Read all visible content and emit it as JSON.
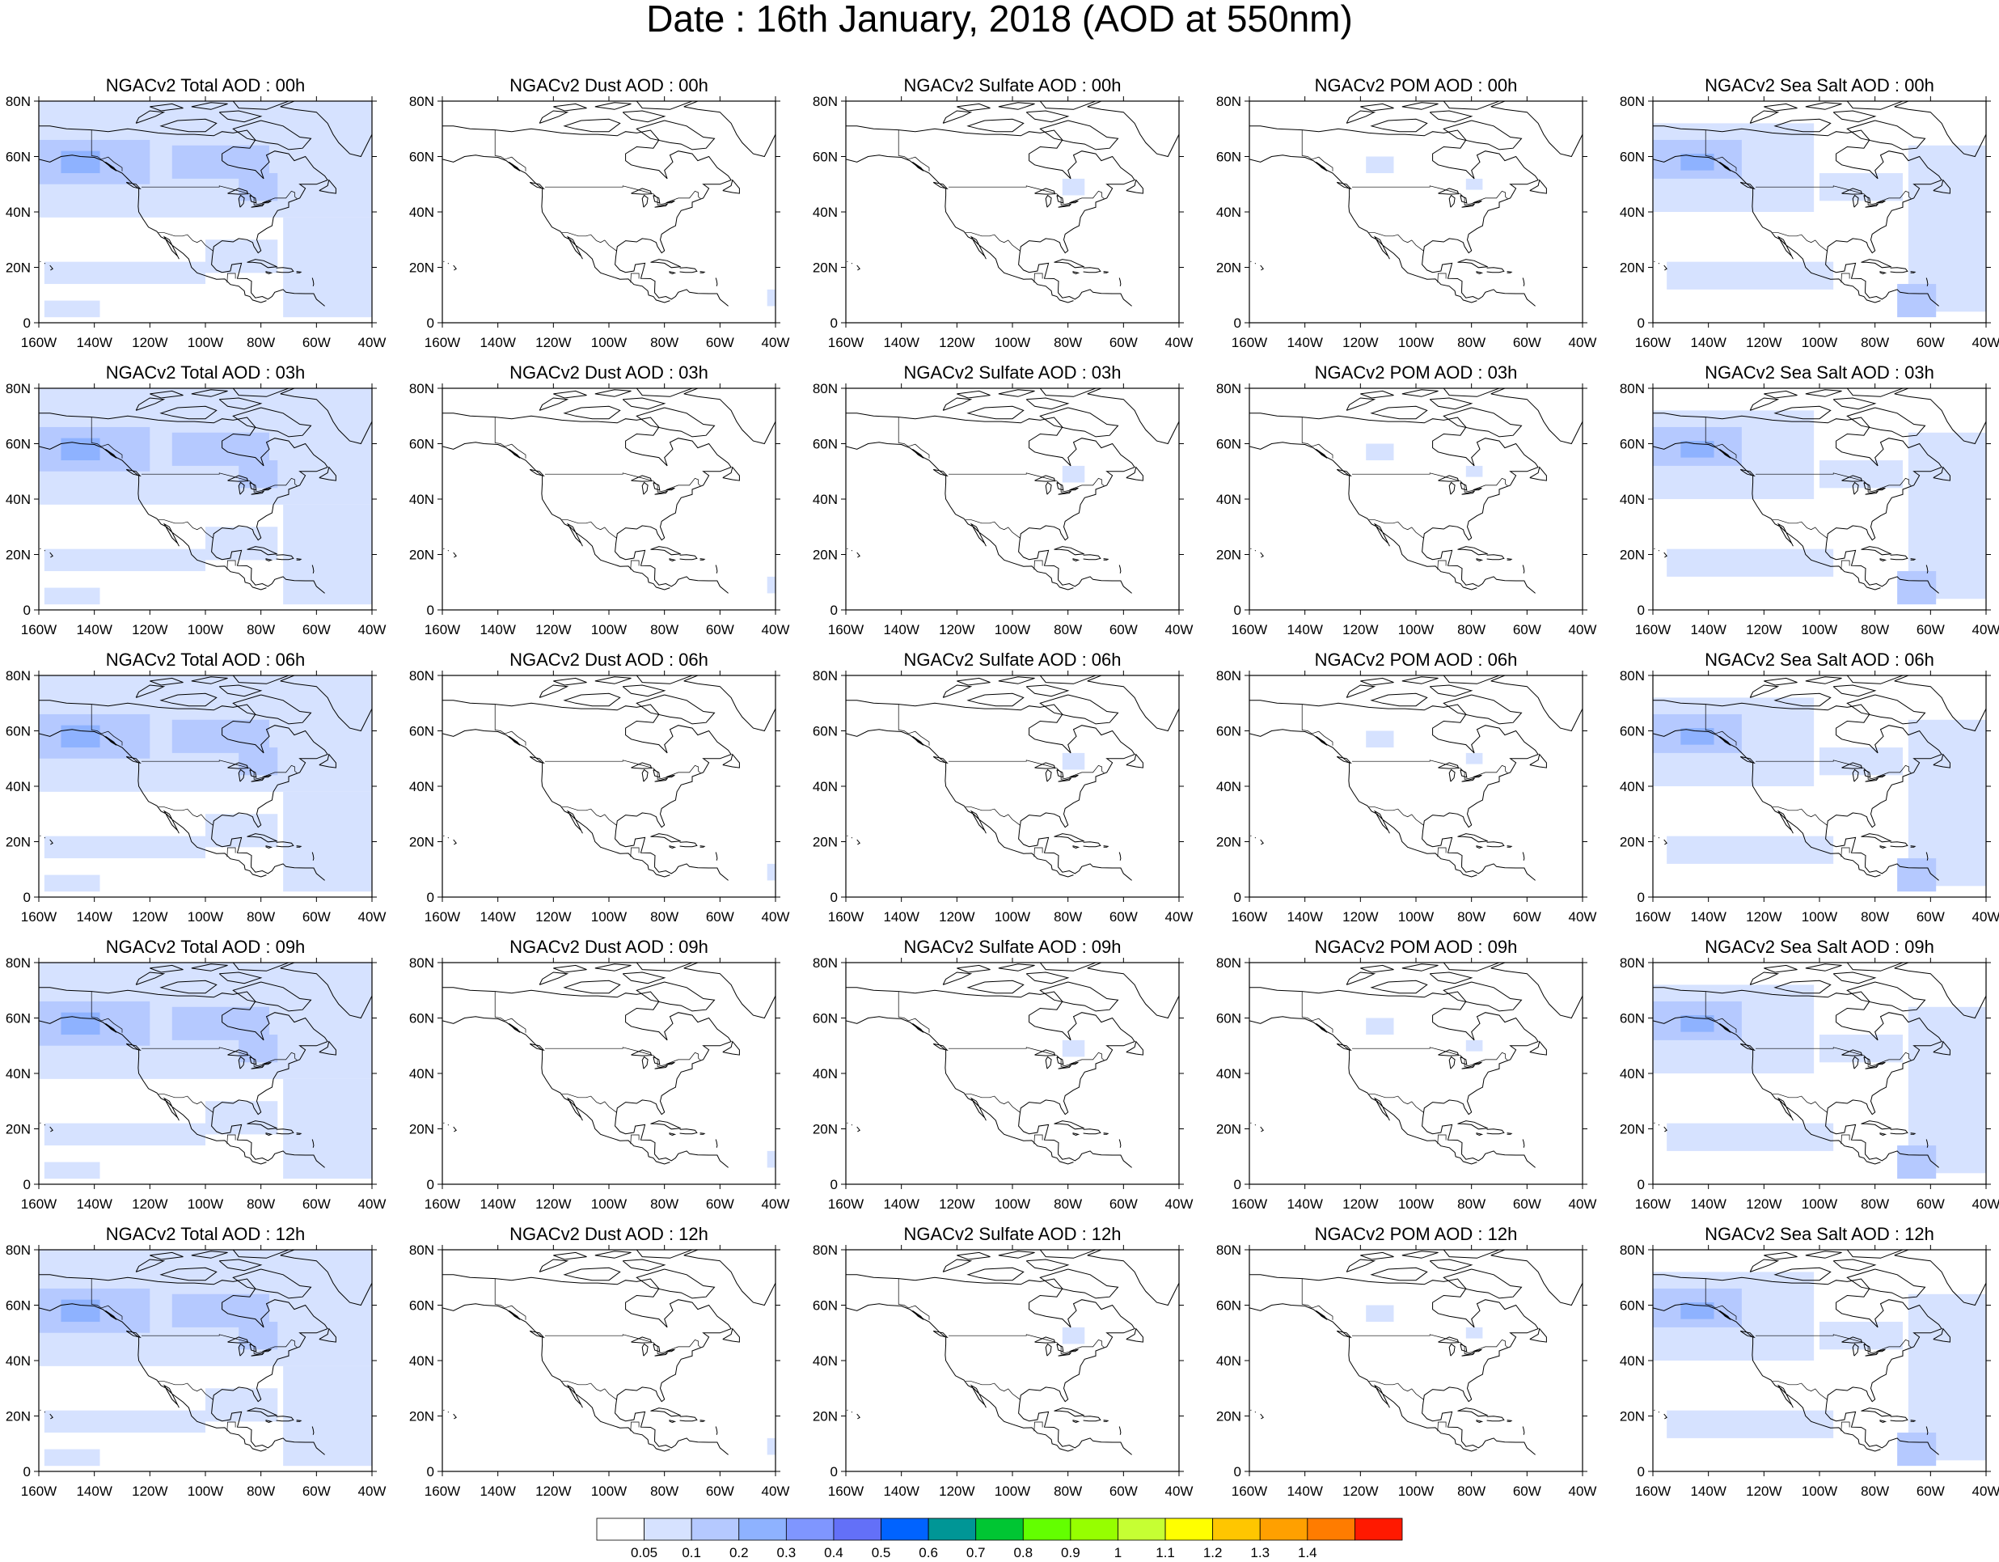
{
  "title": "Date : 16th January, 2018 (AOD at 550nm)",
  "panel_titles": [
    [
      "NGACv2 Total AOD : 00h",
      "NGACv2 Dust AOD : 00h",
      "NGACv2 Sulfate AOD : 00h",
      "NGACv2 POM AOD : 00h",
      "NGACv2 Sea Salt AOD : 00h"
    ],
    [
      "NGACv2 Total AOD : 03h",
      "NGACv2 Dust AOD : 03h",
      "NGACv2 Sulfate AOD : 03h",
      "NGACv2 POM AOD : 03h",
      "NGACv2 Sea Salt AOD : 03h"
    ],
    [
      "NGACv2 Total AOD : 06h",
      "NGACv2 Dust AOD : 06h",
      "NGACv2 Sulfate AOD : 06h",
      "NGACv2 POM AOD : 06h",
      "NGACv2 Sea Salt AOD : 06h"
    ],
    [
      "NGACv2 Total AOD : 09h",
      "NGACv2 Dust AOD : 09h",
      "NGACv2 Sulfate AOD : 09h",
      "NGACv2 POM AOD : 09h",
      "NGACv2 Sea Salt  AOD : 09h"
    ],
    [
      "NGACv2 Total AOD  : 12h",
      "NGACv2 Dust AOD : 12h",
      "NGACv2 Sulfate AOD : 12h",
      "NGACv2 POM  AOD : 12h",
      "NGACv2 Sea Salt  AOD : 12h"
    ]
  ],
  "lon_ticks": [
    "160W",
    "140W",
    "120W",
    "100W",
    "80W",
    "60W",
    "40W"
  ],
  "lat_ticks": [
    "80N",
    "60N",
    "40N",
    "20N",
    "0"
  ],
  "colorbar": {
    "labels": [
      "0.05",
      "0.1",
      "0.2",
      "0.3",
      "0.4",
      "0.5",
      "0.6",
      "0.7",
      "0.8",
      "0.9",
      "1",
      "1.1",
      "1.2",
      "1.3",
      "1.4"
    ],
    "colors": [
      "#ffffff",
      "#d6e2ff",
      "#b5c9ff",
      "#8eb2ff",
      "#7f96ff",
      "#6370f8",
      "#0063ff",
      "#009696",
      "#00c633",
      "#63ff00",
      "#96ff00",
      "#c6ff33",
      "#ffff00",
      "#ffc600",
      "#ffa000",
      "#ff7c00",
      "#ff1900"
    ]
  },
  "map_extent": {
    "lon": [
      -160,
      -40
    ],
    "lat": [
      0,
      80
    ]
  },
  "field_colors": {
    "light": "#d6e2ff",
    "medium": "#b5c9ff",
    "strong": "#8eb2ff"
  },
  "fields": {
    "Total": [
      {
        "lon": -160,
        "lat": 38,
        "w": 120,
        "h": 42,
        "level": "light"
      },
      {
        "lon": -160,
        "lat": 50,
        "w": 40,
        "h": 16,
        "level": "medium"
      },
      {
        "lon": -152,
        "lat": 54,
        "w": 14,
        "h": 8,
        "level": "strong"
      },
      {
        "lon": -112,
        "lat": 52,
        "w": 35,
        "h": 12,
        "level": "medium"
      },
      {
        "lon": -88,
        "lat": 44,
        "w": 14,
        "h": 10,
        "level": "medium"
      },
      {
        "lon": -72,
        "lat": 2,
        "w": 32,
        "h": 36,
        "level": "light"
      },
      {
        "lon": -158,
        "lat": 14,
        "w": 58,
        "h": 8,
        "level": "light"
      },
      {
        "lon": -100,
        "lat": 18,
        "w": 26,
        "h": 12,
        "level": "light"
      },
      {
        "lon": -158,
        "lat": 2,
        "w": 20,
        "h": 6,
        "level": "light"
      }
    ],
    "Dust": [
      {
        "lon": -43,
        "lat": 6,
        "w": 3,
        "h": 6,
        "level": "light"
      }
    ],
    "Sulfate": [
      {
        "lon": -82,
        "lat": 46,
        "w": 8,
        "h": 6,
        "level": "light"
      }
    ],
    "POM": [
      {
        "lon": -118,
        "lat": 54,
        "w": 10,
        "h": 6,
        "level": "light"
      },
      {
        "lon": -82,
        "lat": 48,
        "w": 6,
        "h": 4,
        "level": "light"
      }
    ],
    "SeaSalt": [
      {
        "lon": -160,
        "lat": 40,
        "w": 58,
        "h": 32,
        "level": "light"
      },
      {
        "lon": -160,
        "lat": 52,
        "w": 32,
        "h": 14,
        "level": "medium"
      },
      {
        "lon": -150,
        "lat": 55,
        "w": 12,
        "h": 6,
        "level": "strong"
      },
      {
        "lon": -68,
        "lat": 4,
        "w": 28,
        "h": 60,
        "level": "light"
      },
      {
        "lon": -100,
        "lat": 44,
        "w": 30,
        "h": 10,
        "level": "light"
      },
      {
        "lon": -155,
        "lat": 12,
        "w": 60,
        "h": 10,
        "level": "light"
      },
      {
        "lon": -72,
        "lat": 2,
        "w": 14,
        "h": 12,
        "level": "medium"
      }
    ]
  }
}
